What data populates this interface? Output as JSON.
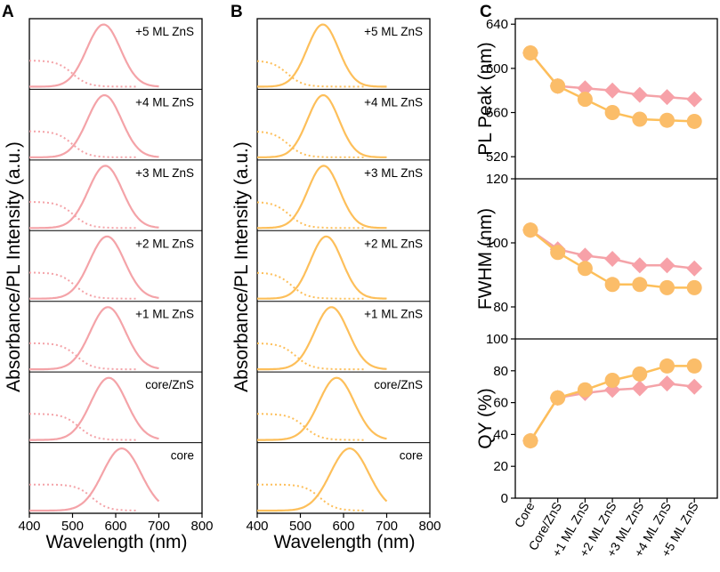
{
  "colors": {
    "pink": "#f4a3a8",
    "orange": "#fdbf5a",
    "marker_pink": "#f7a1a8",
    "marker_orange": "#fbbd69",
    "axis": "#000000"
  },
  "panel_labels": [
    "A",
    "B",
    "C"
  ],
  "spectra_panels": {
    "ylabel": "Absorbance/PL Intensity (a.u.)",
    "xlabel": "Wavelength (nm)",
    "xlim": [
      400,
      800
    ],
    "xticks": [
      "400",
      "500",
      "600",
      "700",
      "800"
    ],
    "sample_labels": [
      "+5 ML ZnS",
      "+4 ML ZnS",
      "+3 ML ZnS",
      "+2 ML ZnS",
      "+1 ML ZnS",
      "core/ZnS",
      "core"
    ]
  },
  "chart_data": [
    {
      "panel": "A",
      "type": "line",
      "title": "",
      "xlabel": "Wavelength (nm)",
      "ylabel": "Absorbance/PL Intensity (a.u.)",
      "xlim": [
        400,
        800
      ],
      "color": "#f4a3a8",
      "series": [
        {
          "name": "+5 ML ZnS",
          "pl_peak_nm": 572,
          "pl_fwhm_nm": 92,
          "abs_edge_nm": 500
        },
        {
          "name": "+4 ML ZnS",
          "pl_peak_nm": 574,
          "pl_fwhm_nm": 93,
          "abs_edge_nm": 500
        },
        {
          "name": "+3 ML ZnS",
          "pl_peak_nm": 576,
          "pl_fwhm_nm": 93,
          "abs_edge_nm": 503
        },
        {
          "name": "+2 ML ZnS",
          "pl_peak_nm": 580,
          "pl_fwhm_nm": 95,
          "abs_edge_nm": 506
        },
        {
          "name": "+1 ML ZnS",
          "pl_peak_nm": 582,
          "pl_fwhm_nm": 96,
          "abs_edge_nm": 510
        },
        {
          "name": "core/ZnS",
          "pl_peak_nm": 584,
          "pl_fwhm_nm": 98,
          "abs_edge_nm": 515
        },
        {
          "name": "core",
          "pl_peak_nm": 614,
          "pl_fwhm_nm": 104,
          "abs_edge_nm": 545
        }
      ]
    },
    {
      "panel": "B",
      "type": "line",
      "title": "",
      "xlabel": "Wavelength (nm)",
      "ylabel": "Absorbance/PL Intensity (a.u.)",
      "xlim": [
        400,
        800
      ],
      "color": "#fdbf5a",
      "series": [
        {
          "name": "+5 ML ZnS",
          "pl_peak_nm": 552,
          "pl_fwhm_nm": 86,
          "abs_edge_nm": 470
        },
        {
          "name": "+4 ML ZnS",
          "pl_peak_nm": 553,
          "pl_fwhm_nm": 86,
          "abs_edge_nm": 472
        },
        {
          "name": "+3 ML ZnS",
          "pl_peak_nm": 554,
          "pl_fwhm_nm": 87,
          "abs_edge_nm": 475
        },
        {
          "name": "+2 ML ZnS",
          "pl_peak_nm": 560,
          "pl_fwhm_nm": 87,
          "abs_edge_nm": 480
        },
        {
          "name": "+1 ML ZnS",
          "pl_peak_nm": 572,
          "pl_fwhm_nm": 92,
          "abs_edge_nm": 490
        },
        {
          "name": "core/ZnS",
          "pl_peak_nm": 584,
          "pl_fwhm_nm": 97,
          "abs_edge_nm": 510
        },
        {
          "name": "core",
          "pl_peak_nm": 614,
          "pl_fwhm_nm": 104,
          "abs_edge_nm": 545
        }
      ]
    },
    {
      "panel": "C",
      "type": "line",
      "categories": [
        "Core",
        "Core/ZnS",
        "+1 ML ZnS",
        "+2 ML ZnS",
        "+3 ML ZnS",
        "+4 ML ZnS",
        "+5 ML ZnS"
      ],
      "subplots": [
        {
          "ylabel": "PL Peak (nm)",
          "ylim": [
            500,
            645
          ],
          "yticks": [
            "520",
            "560",
            "600",
            "640"
          ],
          "series": [
            {
              "name": "pink",
              "marker": "diamond",
              "values": [
                614,
                584,
                582,
                580,
                576,
                574,
                572
              ]
            },
            {
              "name": "orange",
              "marker": "circle",
              "values": [
                614,
                584,
                572,
                560,
                554,
                553,
                552
              ]
            }
          ]
        },
        {
          "ylabel": "FWHM (nm)",
          "ylim": [
            70,
            120
          ],
          "yticks": [
            "80",
            "100",
            "120"
          ],
          "series": [
            {
              "name": "pink",
              "marker": "diamond",
              "values": [
                104,
                98,
                96,
                95,
                93,
                93,
                92
              ]
            },
            {
              "name": "orange",
              "marker": "circle",
              "values": [
                104,
                97,
                92,
                87,
                87,
                86,
                86
              ]
            }
          ]
        },
        {
          "ylabel": "QY (%)",
          "ylim": [
            0,
            100
          ],
          "yticks": [
            "0",
            "20",
            "40",
            "60",
            "80",
            "100"
          ],
          "series": [
            {
              "name": "pink",
              "marker": "diamond",
              "values": [
                36,
                63,
                66,
                68,
                69,
                72,
                70
              ]
            },
            {
              "name": "orange",
              "marker": "circle",
              "values": [
                36,
                63,
                68,
                74,
                78,
                83,
                83
              ]
            }
          ]
        }
      ]
    }
  ]
}
